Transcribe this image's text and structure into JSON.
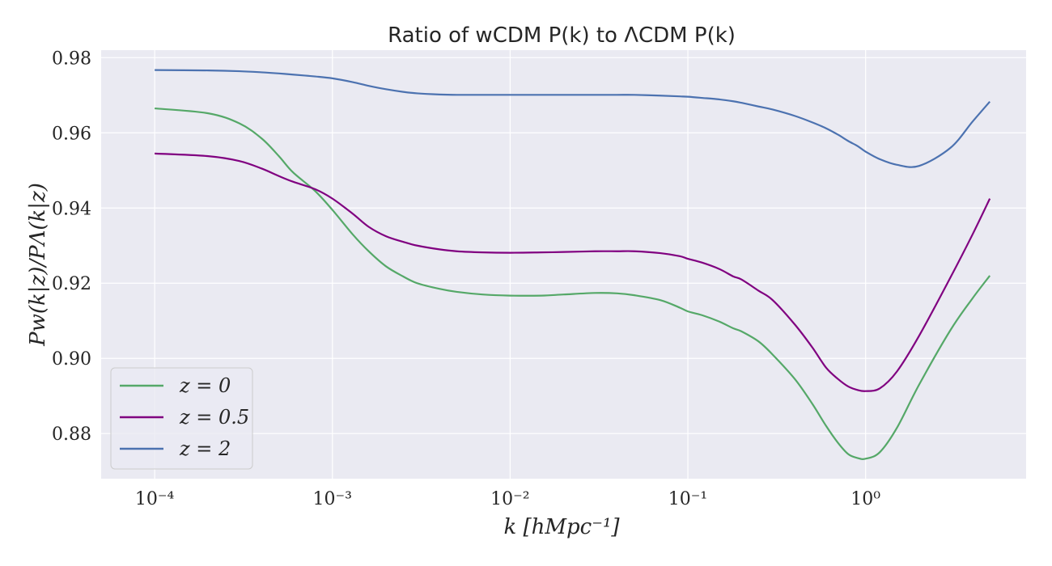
{
  "chart_data": {
    "type": "line",
    "title": "Ratio of wCDM P(k) to ΛCDM P(k)",
    "xlabel": "k [hMpc⁻¹]",
    "ylabel": "Pw(k|z)/PΛ(k|z)",
    "x_scale": "log",
    "xlim": [
      5e-05,
      8
    ],
    "ylim": [
      0.868,
      0.982
    ],
    "x_ticks": [
      0.0001,
      0.001,
      0.01,
      0.1,
      1
    ],
    "x_tick_labels": [
      "10⁻⁴",
      "10⁻³",
      "10⁻²",
      "10⁻¹",
      "10⁰"
    ],
    "y_ticks": [
      0.88,
      0.9,
      0.92,
      0.94,
      0.96,
      0.98
    ],
    "y_tick_labels": [
      "0.88",
      "0.90",
      "0.92",
      "0.94",
      "0.96",
      "0.98"
    ],
    "grid": true,
    "legend_position": "lower-left",
    "series": [
      {
        "name": "z = 0",
        "color": "#55a868",
        "x": [
          0.0001,
          0.0002,
          0.0003,
          0.0004,
          0.0005,
          0.0006,
          0.0008,
          0.001,
          0.0013,
          0.0016,
          0.002,
          0.0025,
          0.003,
          0.004,
          0.005,
          0.007,
          0.01,
          0.015,
          0.02,
          0.03,
          0.04,
          0.05,
          0.07,
          0.09,
          0.1,
          0.12,
          0.15,
          0.18,
          0.2,
          0.25,
          0.3,
          0.4,
          0.5,
          0.6,
          0.7,
          0.8,
          0.9,
          1.0,
          1.2,
          1.5,
          2.0,
          3.0,
          4.0,
          5.0
        ],
        "y": [
          0.9665,
          0.9652,
          0.9625,
          0.9585,
          0.9538,
          0.9495,
          0.9445,
          0.9395,
          0.933,
          0.9285,
          0.9245,
          0.9218,
          0.92,
          0.9185,
          0.9177,
          0.917,
          0.9167,
          0.9167,
          0.917,
          0.9174,
          0.9173,
          0.9168,
          0.9155,
          0.9135,
          0.9125,
          0.9115,
          0.9098,
          0.908,
          0.9072,
          0.9045,
          0.901,
          0.8945,
          0.888,
          0.882,
          0.8775,
          0.8745,
          0.8735,
          0.8733,
          0.875,
          0.8815,
          0.893,
          0.9075,
          0.916,
          0.922
        ]
      },
      {
        "name": "z = 0.5",
        "color": "#800080",
        "x": [
          0.0001,
          0.0002,
          0.0003,
          0.0004,
          0.0005,
          0.0006,
          0.0008,
          0.001,
          0.0013,
          0.0016,
          0.002,
          0.0025,
          0.003,
          0.004,
          0.005,
          0.007,
          0.01,
          0.015,
          0.02,
          0.03,
          0.04,
          0.05,
          0.07,
          0.09,
          0.1,
          0.12,
          0.15,
          0.18,
          0.2,
          0.25,
          0.3,
          0.4,
          0.5,
          0.6,
          0.7,
          0.8,
          0.9,
          1.0,
          1.2,
          1.5,
          2.0,
          3.0,
          4.0,
          5.0
        ],
        "y": [
          0.9545,
          0.9538,
          0.9525,
          0.9505,
          0.9485,
          0.947,
          0.945,
          0.9425,
          0.9385,
          0.935,
          0.9325,
          0.931,
          0.93,
          0.929,
          0.9285,
          0.9282,
          0.9281,
          0.9282,
          0.9283,
          0.9285,
          0.9285,
          0.9285,
          0.928,
          0.9272,
          0.9265,
          0.9255,
          0.9238,
          0.9218,
          0.921,
          0.918,
          0.9155,
          0.909,
          0.903,
          0.8975,
          0.8945,
          0.8925,
          0.8916,
          0.8913,
          0.892,
          0.8965,
          0.906,
          0.9215,
          0.933,
          0.9425
        ]
      },
      {
        "name": "z = 2",
        "color": "#4c72b0",
        "x": [
          0.0001,
          0.0002,
          0.0003,
          0.0004,
          0.0005,
          0.0006,
          0.0008,
          0.001,
          0.0013,
          0.0016,
          0.002,
          0.0025,
          0.003,
          0.004,
          0.005,
          0.007,
          0.01,
          0.015,
          0.02,
          0.03,
          0.04,
          0.05,
          0.07,
          0.09,
          0.1,
          0.12,
          0.15,
          0.18,
          0.2,
          0.25,
          0.3,
          0.4,
          0.5,
          0.6,
          0.7,
          0.8,
          0.9,
          1.0,
          1.2,
          1.5,
          2.0,
          3.0,
          4.0,
          5.0
        ],
        "y": [
          0.9767,
          0.9766,
          0.9764,
          0.9761,
          0.9758,
          0.9755,
          0.975,
          0.9745,
          0.9735,
          0.9725,
          0.9716,
          0.9709,
          0.9705,
          0.9702,
          0.9701,
          0.9701,
          0.9701,
          0.9701,
          0.9701,
          0.9701,
          0.9701,
          0.9701,
          0.9699,
          0.9697,
          0.9696,
          0.9693,
          0.9689,
          0.9684,
          0.968,
          0.967,
          0.9662,
          0.9645,
          0.9628,
          0.9612,
          0.9595,
          0.9578,
          0.9565,
          0.955,
          0.953,
          0.9515,
          0.9512,
          0.956,
          0.963,
          0.9683
        ]
      }
    ]
  }
}
